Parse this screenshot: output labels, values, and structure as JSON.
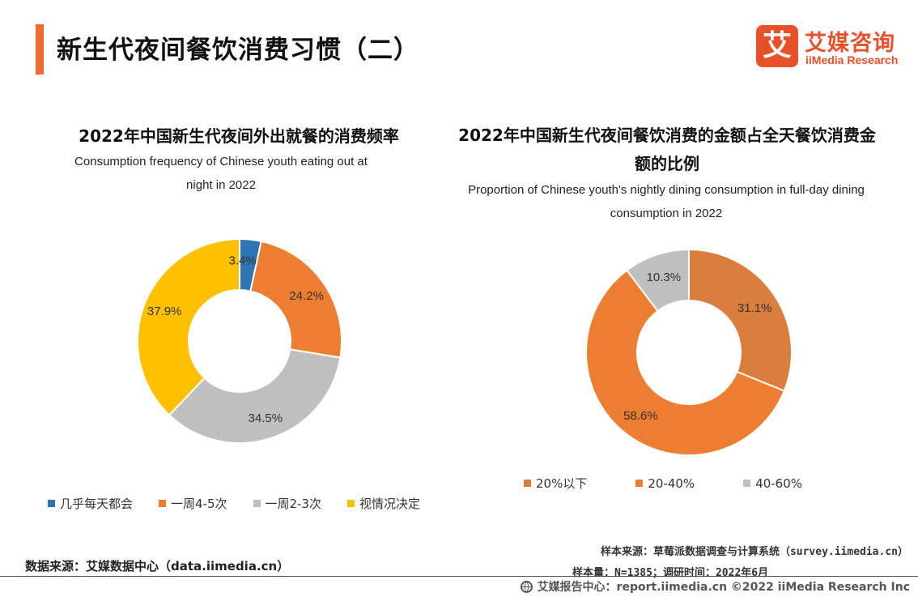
{
  "header": {
    "title": "新生代夜间餐饮消费习惯（二）",
    "logo_mark": "艾",
    "logo_cn": "艾媒咨询",
    "logo_en": "iiMedia Research",
    "accent_color": "#ee6a2f",
    "brand_color": "#e8502a"
  },
  "chart_data": [
    {
      "type": "pie",
      "variant": "donut",
      "title": "2022年中国新生代夜间外出就餐的消费频率",
      "subtitle": "Consumption frequency of Chinese youth eating out at night in 2022",
      "subtitle_lines": [
        "Consumption frequency of Chinese youth eating out at",
        "night in 2022"
      ],
      "categories": [
        "几乎每天都会",
        "一周4-5次",
        "一周2-3次",
        "视情况决定"
      ],
      "values": [
        3.4,
        24.2,
        34.5,
        37.9
      ],
      "labels": [
        "3.4%",
        "24.2%",
        "34.5%",
        "37.9%"
      ],
      "colors": [
        "#2e75b6",
        "#ed7d31",
        "#bfbfbf",
        "#ffc000"
      ],
      "legend": "bottom"
    },
    {
      "type": "pie",
      "variant": "donut",
      "title": "2022年中国新生代夜间餐饮消费的金额占全天餐饮消费金额的比例",
      "title_lines": [
        "2022年中国新生代夜间餐饮消费的金额占全天餐饮消费金",
        "额的比例"
      ],
      "subtitle": "Proportion of Chinese youth's nightly dining consumption in full-day dining consumption in 2022",
      "subtitle_lines": [
        "Proportion of Chinese youth's nightly dining consumption in full-day dining",
        "consumption in 2022"
      ],
      "categories": [
        "20%以下",
        "20-40%",
        "40-60%"
      ],
      "values": [
        31.1,
        58.6,
        10.3
      ],
      "labels": [
        "31.1%",
        "58.6%",
        "10.3%"
      ],
      "colors": [
        "#d97e3c",
        "#ed7d31",
        "#bfbfbf"
      ],
      "legend": "bottom"
    }
  ],
  "footer": {
    "data_source": "数据来源：艾媒数据中心（data.iimedia.cn）",
    "sample_source": "样本来源：草莓派数据调查与计算系统（survey.iimedia.cn）",
    "sample_size": "样本量：N=1385；调研时间：2022年6月",
    "report_center": "艾媒报告中心：report.iimedia.cn  ©2022  iiMedia Research  Inc"
  }
}
